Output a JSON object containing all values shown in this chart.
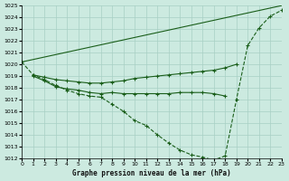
{
  "title": "Graphe pression niveau de la mer (hPa)",
  "bg_color": "#cceae0",
  "grid_color": "#a8cfc4",
  "line_color": "#1a5e1a",
  "xlim": [
    0,
    23
  ],
  "ylim": [
    1012,
    1025
  ],
  "yticks": [
    1012,
    1013,
    1014,
    1015,
    1016,
    1017,
    1018,
    1019,
    1020,
    1021,
    1022,
    1023,
    1024,
    1025
  ],
  "xticks": [
    0,
    1,
    2,
    3,
    4,
    5,
    6,
    7,
    8,
    9,
    10,
    11,
    12,
    13,
    14,
    15,
    16,
    17,
    18,
    19,
    20,
    21,
    22,
    23
  ],
  "series": [
    {
      "x": [
        0,
        23
      ],
      "y": [
        1020.2,
        1025.0
      ],
      "linestyle": "-",
      "marker": "none"
    },
    {
      "x": [
        1,
        2,
        3,
        4,
        5,
        6,
        7,
        8,
        9,
        10,
        11,
        12,
        13,
        14,
        15,
        16,
        17,
        18,
        19
      ],
      "y": [
        1019.1,
        1018.9,
        1018.7,
        1018.6,
        1018.5,
        1018.4,
        1018.4,
        1018.5,
        1018.6,
        1018.8,
        1018.9,
        1019.0,
        1019.1,
        1019.2,
        1019.3,
        1019.4,
        1019.5,
        1019.7,
        1020.0
      ],
      "linestyle": "-",
      "marker": "+"
    },
    {
      "x": [
        1,
        2,
        3,
        4,
        5,
        6,
        7,
        8,
        9,
        10,
        11,
        12,
        13,
        14,
        15,
        16,
        17,
        18
      ],
      "y": [
        1019.0,
        1018.6,
        1018.1,
        1017.9,
        1017.8,
        1017.6,
        1017.5,
        1017.6,
        1017.5,
        1017.5,
        1017.5,
        1017.5,
        1017.5,
        1017.6,
        1017.6,
        1017.6,
        1017.5,
        1017.3
      ],
      "linestyle": "-",
      "marker": "+"
    },
    {
      "x": [
        0,
        1,
        2,
        3,
        4,
        5,
        6,
        7,
        8,
        9,
        10,
        11,
        12,
        13,
        14,
        15,
        16,
        17,
        18,
        19,
        20,
        21,
        22,
        23
      ],
      "y": [
        1020.2,
        1019.1,
        1018.7,
        1018.2,
        1017.8,
        1017.5,
        1017.3,
        1017.2,
        1016.6,
        1016.0,
        1015.2,
        1014.8,
        1014.0,
        1013.3,
        1012.7,
        1012.3,
        1012.1,
        1011.85,
        1012.2,
        1017.0,
        1021.6,
        1023.1,
        1024.1,
        1024.6
      ],
      "linestyle": "--",
      "marker": "+"
    }
  ]
}
